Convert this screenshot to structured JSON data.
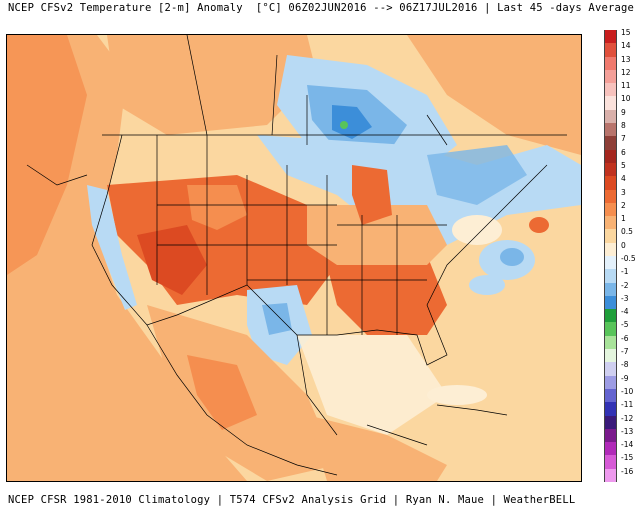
{
  "header": {
    "title": "NCEP CFSv2 Temperature [2-m] Anomaly  [°C] 06Z02JUN2016 --> 06Z17JUL2016 | Last 45 -days Average"
  },
  "footer": {
    "text": "NCEP CFSR 1981-2010 Climatology | T574 CFSv2 Analysis Grid | Ryan N. Maue | WeatherBELL"
  },
  "legend": {
    "items": [
      {
        "label": "15",
        "color": "#c81e1e"
      },
      {
        "label": "14",
        "color": "#e0503c"
      },
      {
        "label": "13",
        "color": "#f07a6e"
      },
      {
        "label": "12",
        "color": "#f4a099"
      },
      {
        "label": "11",
        "color": "#f7c2bd"
      },
      {
        "label": "10",
        "color": "#fbe2dc"
      },
      {
        "label": "9",
        "color": "#d9b0aa"
      },
      {
        "label": "8",
        "color": "#b8746c"
      },
      {
        "label": "7",
        "color": "#8e3f38"
      },
      {
        "label": "6",
        "color": "#a4261e"
      },
      {
        "label": "5",
        "color": "#c0321f"
      },
      {
        "label": "4",
        "color": "#dc4a22"
      },
      {
        "label": "3",
        "color": "#ec6a33"
      },
      {
        "label": "2",
        "color": "#f58e4f"
      },
      {
        "label": "1",
        "color": "#f8b274"
      },
      {
        "label": "0.5",
        "color": "#fbd7a0"
      },
      {
        "label": "0",
        "color": "#fdeed4"
      },
      {
        "label": "-0.5",
        "color": "#e4f1fb"
      },
      {
        "label": "-1",
        "color": "#b8daf4"
      },
      {
        "label": "-2",
        "color": "#7ab6e8"
      },
      {
        "label": "-3",
        "color": "#3c8ed9"
      },
      {
        "label": "-4",
        "color": "#1f9e3a"
      },
      {
        "label": "-5",
        "color": "#58c45a"
      },
      {
        "label": "-6",
        "color": "#a8e39a"
      },
      {
        "label": "-7",
        "color": "#e4f5de"
      },
      {
        "label": "-8",
        "color": "#cfcff0"
      },
      {
        "label": "-9",
        "color": "#9d9ce4"
      },
      {
        "label": "-10",
        "color": "#6464d0"
      },
      {
        "label": "-11",
        "color": "#3232b4"
      },
      {
        "label": "-12",
        "color": "#3a1a7a"
      },
      {
        "label": "-13",
        "color": "#7a1a8c"
      },
      {
        "label": "-14",
        "color": "#b02ab8"
      },
      {
        "label": "-15",
        "color": "#d65ad6"
      },
      {
        "label": "-16",
        "color": "#ee9aee"
      }
    ]
  },
  "map": {
    "colors": {
      "ocean_warm": "#fbd7a0",
      "land_warm": "#f8b274",
      "hot": "#ec6a33",
      "very_hot": "#dc4a22",
      "cool": "#b8daf4",
      "cold": "#7ab6e8",
      "coldest": "#3c8ed9",
      "neutral": "#fdeed4",
      "green": "#58c45a"
    }
  }
}
